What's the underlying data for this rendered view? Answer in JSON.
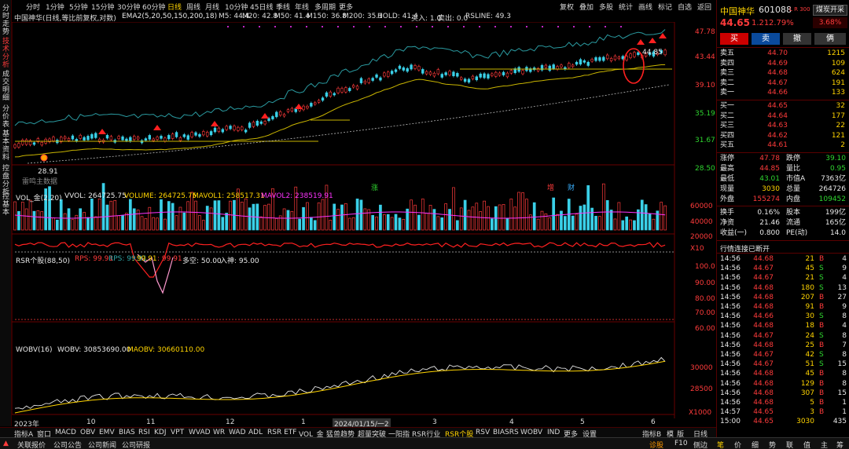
{
  "left_tabs": [
    "分时走势",
    "技术分析",
    "成交明细",
    "分价表",
    "基本资料",
    "控盘分析",
    "控基本"
  ],
  "periods": [
    "分时",
    "1分钟",
    "5分钟",
    "15分钟",
    "30分钟",
    "60分钟",
    "日线",
    "周线",
    "月线",
    "10分钟",
    "45日线",
    "季线",
    "年线",
    "多周期",
    "更多"
  ],
  "active_period": "日线",
  "tools": [
    "复权",
    "叠加",
    "多股",
    "统计",
    "画线",
    "标记",
    "自选",
    "返回"
  ],
  "stock_title": "中国神华(日线,等比前复权,对数)",
  "ema_legend": "EMA2(5,20,50,150,200,18)",
  "ma_legend": [
    {
      "label": "M5: 44.4",
      "color": "#ffffff"
    },
    {
      "label": "M20: 42.8",
      "color": "#ffd400"
    },
    {
      "label": "M50: 41.4",
      "color": "#ff33ff"
    },
    {
      "label": "M150: 36.8",
      "color": "#33cc33"
    },
    {
      "label": "M200: 35.1",
      "color": "#dddddd"
    },
    {
      "label": "HOLD: 41.4",
      "color": "#ffd400"
    },
    {
      "label": "买入: 1.0",
      "color": "#ffd400"
    },
    {
      "label": "卖出: 0.0",
      "color": "#ff3b3b"
    },
    {
      "label": "RSLINE: 49.3",
      "color": "#2fa8a8"
    }
  ],
  "price_axis": [
    "47.78",
    "43.44",
    "39.10",
    "35.19",
    "31.67",
    "28.50"
  ],
  "price_labels": {
    "high": "44.85",
    "low": "28.91"
  },
  "annotations": {
    "note": "雷鸣主数据",
    "zhang": "涨",
    "zeng": "增",
    "cai": "财"
  },
  "volume_legend": [
    {
      "label": "VOL_金(2,20)",
      "color": "#e8e8e8"
    },
    {
      "label": "VVOL: 264725.75",
      "color": "#e8e8e8"
    },
    {
      "label": "VOLUME: 264725.75",
      "color": "#ffd400"
    },
    {
      "label": "MAVOL1: 258517.31",
      "color": "#ffd400"
    },
    {
      "label": "MAVOL2: 238519.91",
      "color": "#ff33ff"
    }
  ],
  "volume_axis": [
    "60000",
    "40000",
    "20000"
  ],
  "volume_unit": "X10",
  "rsr_legend": [
    {
      "label": "RSR个股(88,50)",
      "color": "#e8e8e8"
    },
    {
      "label": "RPS: 99.91",
      "color": "#ff3b3b"
    },
    {
      "label": "RPS: 99.91",
      "color": "#2fa8a8"
    },
    {
      "label": ": 99.91",
      "color": "#ffd400"
    },
    {
      "label": ": 99.91",
      "color": "#ff3b3b"
    },
    {
      "label": "多空: 50.00",
      "color": "#e8e8e8"
    },
    {
      "label": "入神: 95.00",
      "color": "#e8e8e8"
    }
  ],
  "rsr_axis": [
    "100.0",
    "90.00",
    "80.00",
    "70.00",
    "60.00"
  ],
  "wobv_legend": [
    {
      "label": "WOBV(16)",
      "color": "#e8e8e8"
    },
    {
      "label": "WOBV: 30853690.00",
      "color": "#e8e8e8"
    },
    {
      "label": "MAOBV: 30660110.00",
      "color": "#ffd400"
    }
  ],
  "wobv_axis": [
    "30000",
    "28500"
  ],
  "wobv_unit": "X1000",
  "date_axis": [
    "2023年",
    "10",
    "11",
    "12",
    "1",
    "2024/01/15/一2",
    "3",
    "4",
    "5",
    "6"
  ],
  "indicator_tabs": [
    "指标A",
    "窗口",
    "MACD",
    "OBV",
    "EMV",
    "BIAS",
    "RSI",
    "KDJ",
    "VPT",
    "WVAD",
    "WR",
    "WAD",
    "ADL",
    "RSR ETF",
    "VOL_金",
    "猛兽趋势",
    "超量突破",
    "一阳指",
    "RSR行业",
    "RSR个股",
    "RSV",
    "BIASRS",
    "WOBV",
    "IND",
    "更多",
    "设置"
  ],
  "active_indicator": "RSR个股",
  "indicator_right": [
    "指标B",
    "模",
    "版",
    "日线"
  ],
  "status_items": [
    "关联报价",
    "公司公告",
    "公司新闻",
    "公司研报"
  ],
  "status_right": [
    "诊股",
    "F10",
    "侧边"
  ],
  "quote": {
    "name": "中国神华",
    "code": "601088",
    "badge": "L R 300",
    "sector_btn": "煤炭开采",
    "price": "44.65",
    "change": "1.21",
    "change_pct": "2.79%",
    "sector_pct": "3.68%",
    "buttons": [
      "买",
      "卖",
      "撤",
      "俩"
    ]
  },
  "sell_orders": [
    {
      "label": "卖五",
      "price": "44.70",
      "vol": "1215"
    },
    {
      "label": "卖四",
      "price": "44.69",
      "vol": "109"
    },
    {
      "label": "卖三",
      "price": "44.68",
      "vol": "624"
    },
    {
      "label": "卖二",
      "price": "44.67",
      "vol": "191"
    },
    {
      "label": "卖一",
      "price": "44.66",
      "vol": "133"
    }
  ],
  "buy_orders": [
    {
      "label": "买一",
      "price": "44.65",
      "vol": "32"
    },
    {
      "label": "买二",
      "price": "44.64",
      "vol": "177"
    },
    {
      "label": "买三",
      "price": "44.63",
      "vol": "22"
    },
    {
      "label": "买四",
      "price": "44.62",
      "vol": "121"
    },
    {
      "label": "买五",
      "price": "44.61",
      "vol": "2"
    }
  ],
  "stats": [
    {
      "l1": "涨停",
      "v1": "47.78",
      "c1": "up",
      "l2": "跌停",
      "v2": "39.10",
      "c2": "down"
    },
    {
      "l1": "最高",
      "v1": "44.85",
      "c1": "up",
      "l2": "量比",
      "v2": "0.95",
      "c2": "down"
    },
    {
      "l1": "最低",
      "v1": "43.01",
      "c1": "down",
      "l2": "市值A",
      "v2": "7363亿",
      "c2": "wht"
    },
    {
      "l1": "现量",
      "v1": "3030",
      "c1": "yel",
      "l2": "总量",
      "v2": "264726",
      "c2": "wht"
    },
    {
      "l1": "外盘",
      "v1": "155274",
      "c1": "up",
      "l2": "内盘",
      "v2": "109452",
      "c2": "down"
    }
  ],
  "stats2": [
    {
      "l1": "换手",
      "v1": "0.16%",
      "l2": "股本",
      "v2": "199亿"
    },
    {
      "l1": "净资",
      "v1": "21.46",
      "l2": "流通",
      "v2": "165亿"
    },
    {
      "l1": "收益(一)",
      "v1": "0.800",
      "l2": "PE(动)",
      "v2": "14.0"
    }
  ],
  "connection_status": "行情连接已断开",
  "ticks": [
    {
      "t": "14:56",
      "p": "44.68",
      "v": "21",
      "bs": "B",
      "n": "4"
    },
    {
      "t": "14:56",
      "p": "44.67",
      "v": "45",
      "bs": "S",
      "n": "9"
    },
    {
      "t": "14:56",
      "p": "44.67",
      "v": "21",
      "bs": "S",
      "n": "4"
    },
    {
      "t": "14:56",
      "p": "44.68",
      "v": "180",
      "bs": "S",
      "n": "13"
    },
    {
      "t": "14:56",
      "p": "44.68",
      "v": "207",
      "bs": "B",
      "n": "27"
    },
    {
      "t": "14:56",
      "p": "44.68",
      "v": "91",
      "bs": "B",
      "n": "9"
    },
    {
      "t": "14:56",
      "p": "44.66",
      "v": "30",
      "bs": "S",
      "n": "8"
    },
    {
      "t": "14:56",
      "p": "44.68",
      "v": "18",
      "bs": "B",
      "n": "4"
    },
    {
      "t": "14:56",
      "p": "44.67",
      "v": "24",
      "bs": "S",
      "n": "8"
    },
    {
      "t": "14:56",
      "p": "44.68",
      "v": "25",
      "bs": "B",
      "n": "7"
    },
    {
      "t": "14:56",
      "p": "44.67",
      "v": "42",
      "bs": "S",
      "n": "8"
    },
    {
      "t": "14:56",
      "p": "44.67",
      "v": "51",
      "bs": "S",
      "n": "15"
    },
    {
      "t": "14:56",
      "p": "44.68",
      "v": "45",
      "bs": "B",
      "n": "8"
    },
    {
      "t": "14:56",
      "p": "44.68",
      "v": "129",
      "bs": "B",
      "n": "8"
    },
    {
      "t": "14:56",
      "p": "44.68",
      "v": "307",
      "bs": "B",
      "n": "15"
    },
    {
      "t": "14:56",
      "p": "44.68",
      "v": "5",
      "bs": "B",
      "n": "1"
    },
    {
      "t": "14:57",
      "p": "44.65",
      "v": "3",
      "bs": "B",
      "n": "1"
    },
    {
      "t": "15:00",
      "p": "44.65",
      "v": "3030",
      "bs": "",
      "n": "435"
    }
  ],
  "bottom_tabs": [
    "笔",
    "价",
    "细",
    "势",
    "联",
    "值",
    "主",
    "筹"
  ]
}
